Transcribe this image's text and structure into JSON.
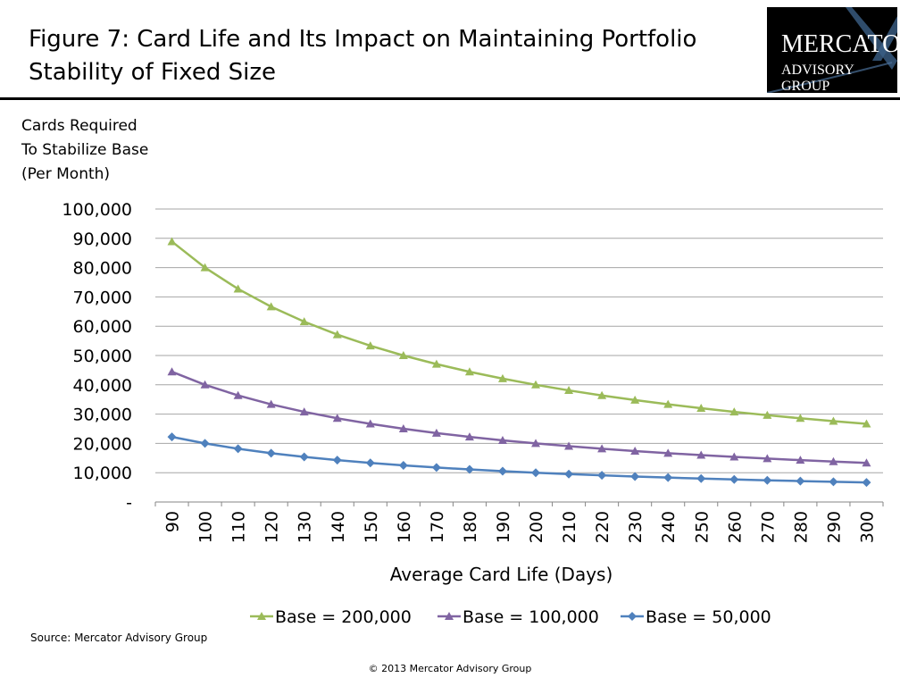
{
  "title_line1": "Figure 7: Card Life and Its Impact on Maintaining Portfolio",
  "title_line2": "Stability of Fixed Size",
  "logo": {
    "line1": "MERCATOR",
    "line2": "ADVISORY GROUP"
  },
  "source": "Source: Mercator Advisory Group",
  "copyright": "© 2013 Mercator Advisory Group",
  "chart_data": {
    "type": "line",
    "ylabel_lines": [
      "Cards Required",
      "To Stabilize Base",
      "(Per Month)"
    ],
    "xlabel": "Average Card Life (Days)",
    "categories": [
      "90",
      "100",
      "110",
      "120",
      "130",
      "140",
      "150",
      "160",
      "170",
      "180",
      "190",
      "200",
      "210",
      "220",
      "230",
      "240",
      "250",
      "260",
      "270",
      "280",
      "290",
      "300"
    ],
    "ylim": [
      0,
      100000
    ],
    "yticks": [
      0,
      10000,
      20000,
      30000,
      40000,
      50000,
      60000,
      70000,
      80000,
      90000,
      100000
    ],
    "ytick_labels": [
      "-",
      "10,000",
      "20,000",
      "30,000",
      "40,000",
      "50,000",
      "60,000",
      "70,000",
      "80,000",
      "90,000",
      "100,000"
    ],
    "grid": true,
    "legend_placement": "bottom",
    "series": [
      {
        "name": "Base = 200,000",
        "color": "#9BBB59",
        "marker": "triangle",
        "values": [
          88889,
          80000,
          72727,
          66667,
          61538,
          57143,
          53333,
          50000,
          47059,
          44444,
          42105,
          40000,
          38095,
          36364,
          34783,
          33333,
          32000,
          30769,
          29630,
          28571,
          27586,
          26667
        ]
      },
      {
        "name": "Base = 100,000",
        "color": "#8064A2",
        "marker": "triangle",
        "values": [
          44444,
          40000,
          36364,
          33333,
          30769,
          28571,
          26667,
          25000,
          23529,
          22222,
          21053,
          20000,
          19048,
          18182,
          17391,
          16667,
          16000,
          15385,
          14815,
          14286,
          13793,
          13333
        ]
      },
      {
        "name": "Base = 50,000",
        "color": "#4F81BD",
        "marker": "diamond",
        "values": [
          22222,
          20000,
          18182,
          16667,
          15385,
          14286,
          13333,
          12500,
          11765,
          11111,
          10526,
          10000,
          9524,
          9091,
          8696,
          8333,
          8000,
          7692,
          7407,
          7143,
          6897,
          6667
        ]
      }
    ]
  }
}
